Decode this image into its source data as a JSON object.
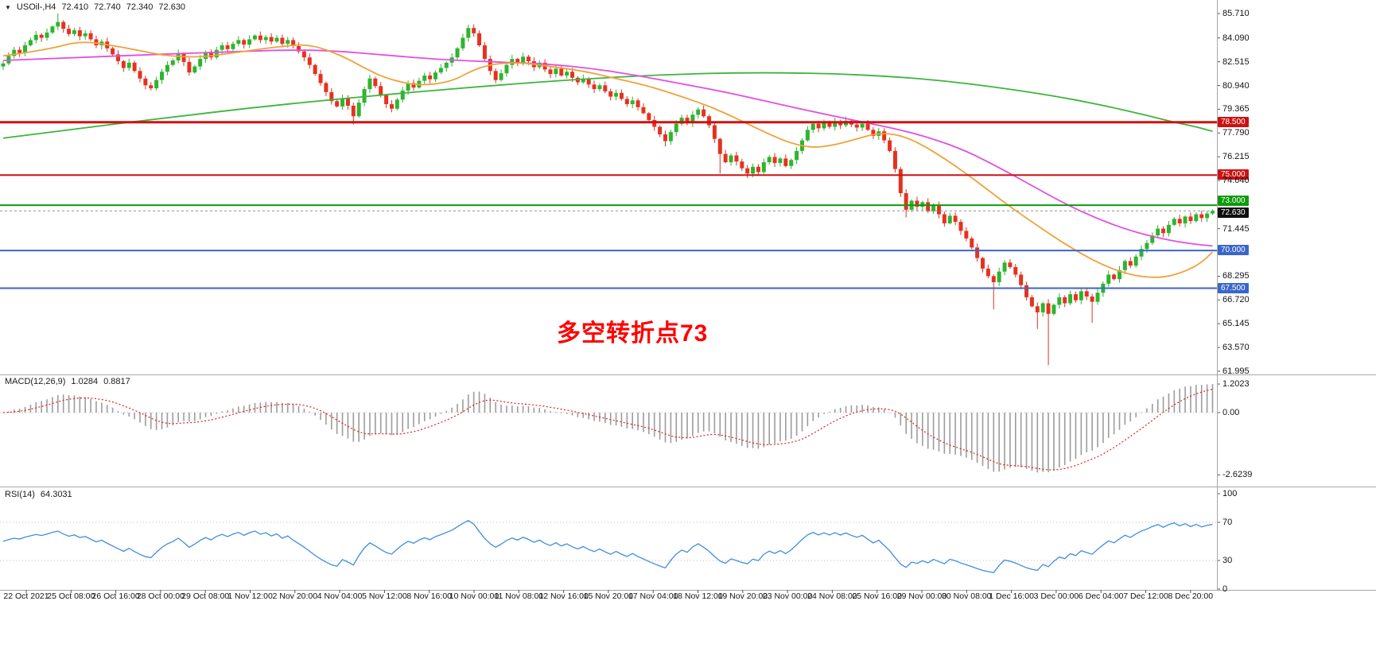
{
  "header": {
    "expander_icon": "▼",
    "symbol_period": "USOil-,H4",
    "ohlc": {
      "open": "72.410",
      "high": "72.740",
      "low": "72.340",
      "close": "72.630"
    }
  },
  "annotation": {
    "text": "多空转折点73",
    "color": "#FF0000"
  },
  "indicators": {
    "macd": {
      "label": "MACD(12,26,9)",
      "value_main": "1.0284",
      "value_signal": "0.8817",
      "axis_labels": [
        "1.2023",
        "0.00",
        "-2.6239"
      ],
      "params": {
        "fast": 12,
        "slow": 26,
        "signal": 9
      }
    },
    "rsi": {
      "label": "RSI(14)",
      "value": "64.3031",
      "axis_labels": [
        "100",
        "70",
        "30",
        "0"
      ],
      "period": 14,
      "levels": [
        70,
        30
      ]
    }
  },
  "chart_data": {
    "type": "candlestick",
    "symbol": "USOil-",
    "timeframe": "H4",
    "ylim": [
      61.84,
      86.6
    ],
    "grid": false,
    "x_labels": [
      "22 Oct 2021",
      "25 Oct 08:00",
      "26 Oct 16:00",
      "28 Oct 00:00",
      "29 Oct 08:00",
      "1 Nov 12:00",
      "2 Nov 20:00",
      "4 Nov 04:00",
      "5 Nov 12:00",
      "8 Nov 16:00",
      "10 Nov 00:00",
      "11 Nov 08:00",
      "12 Nov 16:00",
      "15 Nov 20:00",
      "17 Nov 04:00",
      "18 Nov 12:00",
      "19 Nov 20:00",
      "23 Nov 00:00",
      "24 Nov 08:00",
      "25 Nov 16:00",
      "29 Nov 00:00",
      "30 Nov 08:00",
      "1 Dec 16:00",
      "3 Dec 00:00",
      "6 Dec 04:00",
      "7 Dec 12:00",
      "8 Dec 20:00"
    ],
    "first_open": 82.2,
    "closes": [
      82.4,
      82.9,
      83.3,
      83.1,
      83.6,
      83.95,
      84.3,
      84.1,
      84.45,
      84.85,
      85.15,
      84.7,
      84.35,
      84.6,
      84.2,
      84.4,
      84.0,
      83.6,
      83.85,
      83.4,
      83.0,
      82.55,
      82.1,
      82.45,
      81.9,
      81.4,
      80.95,
      80.75,
      81.3,
      81.85,
      82.3,
      82.6,
      83.05,
      82.5,
      81.8,
      82.2,
      82.7,
      83.1,
      82.8,
      83.3,
      83.6,
      83.35,
      83.7,
      83.95,
      83.65,
      84.0,
      84.25,
      83.95,
      84.15,
      83.85,
      84.1,
      83.7,
      83.95,
      83.55,
      83.2,
      82.8,
      82.3,
      81.7,
      81.1,
      80.5,
      79.9,
      79.55,
      80.1,
      79.6,
      78.9,
      79.8,
      80.7,
      81.4,
      80.9,
      80.3,
      79.7,
      79.4,
      80.0,
      80.6,
      81.1,
      80.8,
      81.25,
      81.6,
      81.35,
      81.8,
      82.1,
      82.45,
      82.8,
      83.4,
      84.1,
      84.75,
      84.4,
      83.6,
      82.7,
      81.9,
      81.3,
      81.75,
      82.3,
      82.7,
      82.4,
      82.85,
      82.55,
      82.15,
      82.45,
      82.0,
      81.7,
      82.05,
      81.6,
      81.85,
      81.45,
      81.15,
      81.4,
      81.0,
      80.7,
      80.95,
      80.55,
      80.2,
      80.45,
      80.05,
      79.7,
      79.95,
      79.5,
      79.1,
      78.65,
      78.2,
      77.7,
      77.25,
      77.85,
      78.4,
      78.8,
      78.45,
      79.0,
      79.35,
      78.9,
      78.3,
      77.4,
      76.4,
      75.85,
      76.3,
      75.9,
      75.45,
      75.1,
      75.55,
      75.2,
      75.85,
      76.2,
      75.8,
      76.1,
      75.6,
      76.0,
      76.6,
      77.3,
      78.0,
      78.4,
      78.1,
      78.45,
      78.2,
      78.55,
      78.3,
      78.6,
      78.35,
      78.15,
      78.4,
      78.0,
      77.6,
      77.9,
      77.3,
      76.6,
      75.4,
      73.8,
      72.7,
      73.3,
      72.9,
      73.2,
      72.6,
      73.0,
      72.4,
      71.8,
      72.3,
      71.9,
      71.3,
      70.8,
      70.2,
      69.5,
      68.8,
      68.3,
      67.9,
      68.6,
      69.2,
      68.9,
      68.4,
      67.7,
      66.9,
      66.3,
      65.9,
      66.5,
      65.8,
      66.4,
      66.9,
      66.5,
      67.1,
      66.7,
      67.3,
      66.95,
      66.6,
      67.2,
      67.8,
      68.4,
      68.1,
      68.7,
      69.3,
      69.0,
      69.6,
      70.1,
      70.5,
      71.0,
      71.45,
      71.15,
      71.7,
      72.1,
      71.8,
      72.25,
      71.95,
      72.4,
      72.15,
      72.45,
      72.63
    ],
    "wick_overrides": {
      "10": {
        "h": 85.71
      },
      "64": {
        "l": 78.35
      },
      "85": {
        "h": 84.97
      },
      "121": {
        "l": 76.9
      },
      "131": {
        "l": 75.1
      },
      "136": {
        "l": 74.8
      },
      "165": {
        "l": 72.2
      },
      "181": {
        "l": 66.1
      },
      "189": {
        "l": 64.8
      },
      "191": {
        "l": 62.4
      },
      "199": {
        "l": 65.2
      },
      "221": {
        "h": 72.74,
        "l": 72.34
      }
    },
    "levels": [
      {
        "price": 78.5,
        "badge": "78.500",
        "color": "#CE1111",
        "badge_color": "#CE1111",
        "width": 3
      },
      {
        "price": 75.0,
        "badge": "75.000",
        "color": "#CE1111",
        "badge_color": "#CE1111",
        "width": 2
      },
      {
        "price": 73.0,
        "badge": "73.000",
        "color": "#0E9B0E",
        "badge_color": "#0E9B0E",
        "width": 2,
        "dy": -5
      },
      {
        "price": 70.0,
        "badge": "70.000",
        "color": "#3B66C8",
        "badge_color": "#3B66C8",
        "width": 2
      },
      {
        "price": 67.5,
        "badge": "67.500",
        "color": "#3B66C8",
        "badge_color": "#3B66C8",
        "width": 2
      }
    ],
    "current_price": {
      "value": 72.63,
      "badge": "72.630",
      "badge_color": "#101010",
      "line_color": "#8f8f8f",
      "dy": 3
    },
    "price_axis_ticks": [
      "85.710",
      "84.090",
      "82.515",
      "80.940",
      "79.365",
      "77.790",
      "76.215",
      "74.640",
      "71.445",
      "68.295",
      "66.720",
      "65.145",
      "63.570",
      "61.995"
    ],
    "moving_averages": [
      {
        "name": "ma-slow-green",
        "color": "#3CB43C",
        "points": [
          [
            0,
            77.45
          ],
          [
            15,
            78.15
          ],
          [
            30,
            78.8
          ],
          [
            45,
            79.45
          ],
          [
            60,
            80.0
          ],
          [
            75,
            80.5
          ],
          [
            90,
            80.95
          ],
          [
            105,
            81.35
          ],
          [
            120,
            81.65
          ],
          [
            135,
            81.8
          ],
          [
            150,
            81.75
          ],
          [
            162,
            81.55
          ],
          [
            172,
            81.25
          ],
          [
            182,
            80.8
          ],
          [
            192,
            80.25
          ],
          [
            200,
            79.7
          ],
          [
            208,
            79.05
          ],
          [
            214,
            78.5
          ],
          [
            218,
            78.2
          ],
          [
            221,
            77.9
          ]
        ]
      },
      {
        "name": "ma-mid-magenta",
        "color": "#E24FE2",
        "points": [
          [
            0,
            82.6
          ],
          [
            20,
            82.9
          ],
          [
            40,
            83.15
          ],
          [
            52,
            83.3
          ],
          [
            60,
            83.25
          ],
          [
            70,
            82.95
          ],
          [
            80,
            82.65
          ],
          [
            90,
            82.5
          ],
          [
            100,
            82.35
          ],
          [
            108,
            82.05
          ],
          [
            116,
            81.6
          ],
          [
            124,
            81.05
          ],
          [
            132,
            80.5
          ],
          [
            140,
            79.85
          ],
          [
            148,
            79.2
          ],
          [
            156,
            78.6
          ],
          [
            164,
            78.0
          ],
          [
            170,
            77.4
          ],
          [
            176,
            76.6
          ],
          [
            182,
            75.5
          ],
          [
            188,
            74.3
          ],
          [
            194,
            73.1
          ],
          [
            200,
            72.1
          ],
          [
            206,
            71.3
          ],
          [
            212,
            70.75
          ],
          [
            217,
            70.45
          ],
          [
            221,
            70.3
          ]
        ]
      },
      {
        "name": "ma-fast-orange",
        "color": "#EFA23C",
        "points": [
          [
            0,
            82.9
          ],
          [
            8,
            83.3
          ],
          [
            14,
            83.9
          ],
          [
            20,
            83.6
          ],
          [
            27,
            83.1
          ],
          [
            30,
            82.9
          ],
          [
            36,
            82.8
          ],
          [
            42,
            83.1
          ],
          [
            50,
            83.5
          ],
          [
            56,
            83.7
          ],
          [
            62,
            82.9
          ],
          [
            66,
            82.1
          ],
          [
            70,
            81.4
          ],
          [
            76,
            80.9
          ],
          [
            82,
            81.2
          ],
          [
            86,
            82.0
          ],
          [
            90,
            82.4
          ],
          [
            95,
            82.45
          ],
          [
            100,
            82.2
          ],
          [
            106,
            81.9
          ],
          [
            112,
            81.4
          ],
          [
            118,
            80.9
          ],
          [
            124,
            80.2
          ],
          [
            128,
            79.7
          ],
          [
            132,
            79.1
          ],
          [
            136,
            78.4
          ],
          [
            140,
            77.7
          ],
          [
            144,
            77.1
          ],
          [
            148,
            76.8
          ],
          [
            152,
            77.0
          ],
          [
            156,
            77.4
          ],
          [
            160,
            77.8
          ],
          [
            164,
            77.65
          ],
          [
            168,
            77.0
          ],
          [
            172,
            76.1
          ],
          [
            176,
            75.1
          ],
          [
            180,
            74.0
          ],
          [
            184,
            72.9
          ],
          [
            188,
            71.9
          ],
          [
            192,
            70.9
          ],
          [
            196,
            70.0
          ],
          [
            200,
            69.2
          ],
          [
            204,
            68.6
          ],
          [
            208,
            68.25
          ],
          [
            212,
            68.2
          ],
          [
            216,
            68.6
          ],
          [
            219,
            69.2
          ],
          [
            221,
            69.9
          ]
        ]
      }
    ],
    "colors": {
      "bull": "#2FB42F",
      "bear": "#E5321F",
      "macd_hist": "#9C9C9C",
      "macd_signal": "#E02020",
      "rsi_line": "#3E8EDE",
      "axis_text": "#141414"
    }
  }
}
